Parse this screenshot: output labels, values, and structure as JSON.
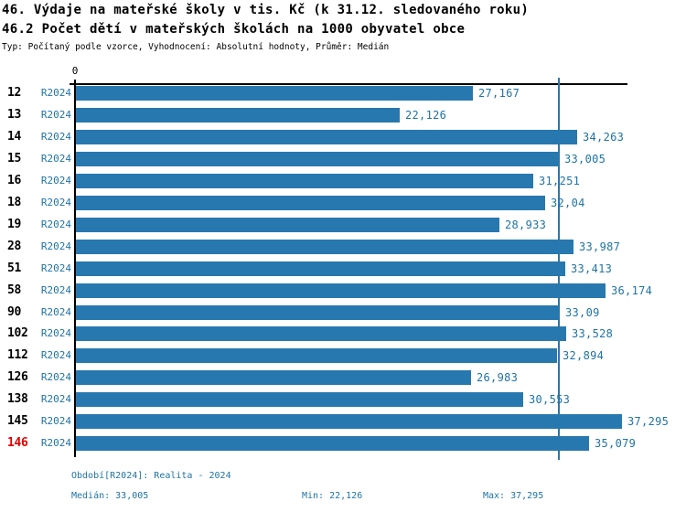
{
  "header": {
    "title": "46. Výdaje na mateřské školy v tis. Kč (k 31.12. sledovaného roku)",
    "subtitle": "46.2 Počet dětí v mateřských školách na 1000 obyvatel obce",
    "meta": "Typ: Počítaný podle vzorce, Vyhodnocení: Absolutní hodnoty, Průměr: Medián"
  },
  "chart_data": {
    "type": "bar",
    "orientation": "horizontal",
    "title": "46. Výdaje na mateřské školy v tis. Kč (k 31.12. sledovaného roku)",
    "subtitle": "46.2 Počet dětí v mateřských školách na 1000 obyvatel obce",
    "series_label": "R2024",
    "x_axis_zero_label": "0",
    "xlim": [
      0,
      37.68
    ],
    "grid": false,
    "legend": false,
    "median": 33.005,
    "highlighted_category": "146",
    "categories": [
      "12",
      "13",
      "14",
      "15",
      "16",
      "18",
      "19",
      "28",
      "51",
      "58",
      "90",
      "102",
      "112",
      "126",
      "138",
      "145",
      "146"
    ],
    "values": [
      27.167,
      22.126,
      34.263,
      33.005,
      31.251,
      32.04,
      28.933,
      33.987,
      33.413,
      36.174,
      33.09,
      33.528,
      32.894,
      26.983,
      30.553,
      37.295,
      35.079
    ],
    "value_labels": [
      "27,167",
      "22,126",
      "34,263",
      "33,005",
      "31,251",
      "32,04",
      "28,933",
      "33,987",
      "33,413",
      "36,174",
      "33,09",
      "33,528",
      "32,894",
      "26,983",
      "30,553",
      "37,295",
      "35,079"
    ],
    "colors": {
      "bar": "#2878b0",
      "median_line": "#2878b0",
      "text_blue": "#1f73a6",
      "highlight_red": "#e00000",
      "axis": "#000000"
    }
  },
  "footer": {
    "period": "Období[R2024]: Realita - 2024",
    "median": "Medián: 33,005",
    "min": "Min: 22,126",
    "max": "Max: 37,295"
  }
}
